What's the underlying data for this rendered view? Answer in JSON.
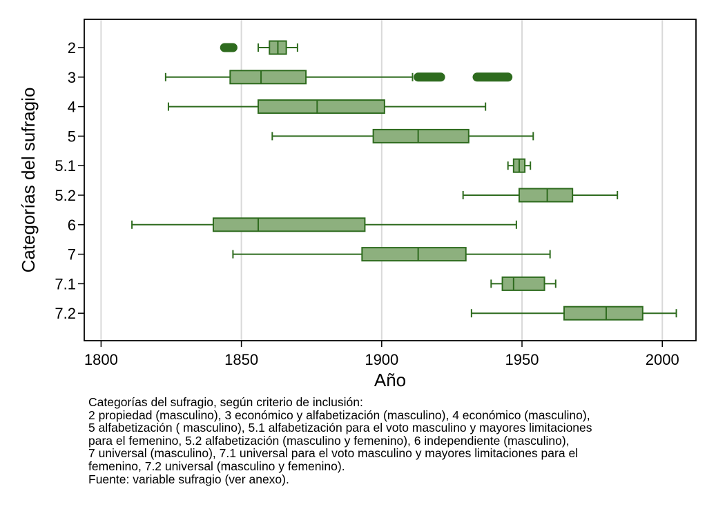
{
  "chart_data": {
    "type": "boxplot",
    "orientation": "horizontal",
    "xlabel": "Año",
    "ylabel": "Categorías del sufragio",
    "xlim": [
      1794,
      2012
    ],
    "xticks": [
      1800,
      1850,
      1900,
      1950,
      2000
    ],
    "grid": "vertical",
    "legend": "none",
    "colors": {
      "box_fill": "#8db07e",
      "stroke": "#2e6b1e",
      "outlier": "#2e6b1e",
      "grid": "#d9d9d9"
    },
    "categories": [
      "2",
      "3",
      "4",
      "5",
      "5.1",
      "5.2",
      "6",
      "7",
      "7.1",
      "7.2"
    ],
    "boxes": [
      {
        "category": "2",
        "whisker_low": 1856,
        "q1": 1860,
        "median": 1863,
        "q3": 1866,
        "whisker_high": 1870,
        "outliers": [
          1844,
          1847
        ]
      },
      {
        "category": "3",
        "whisker_low": 1823,
        "q1": 1846,
        "median": 1857,
        "q3": 1873,
        "whisker_high": 1911,
        "outliers": [
          1913,
          1921,
          1934,
          1945
        ]
      },
      {
        "category": "4",
        "whisker_low": 1824,
        "q1": 1856,
        "median": 1877,
        "q3": 1901,
        "whisker_high": 1937,
        "outliers": []
      },
      {
        "category": "5",
        "whisker_low": 1861,
        "q1": 1897,
        "median": 1913,
        "q3": 1931,
        "whisker_high": 1954,
        "outliers": []
      },
      {
        "category": "5.1",
        "whisker_low": 1945,
        "q1": 1947,
        "median": 1949,
        "q3": 1951,
        "whisker_high": 1953,
        "outliers": []
      },
      {
        "category": "5.2",
        "whisker_low": 1929,
        "q1": 1949,
        "median": 1959,
        "q3": 1968,
        "whisker_high": 1984,
        "outliers": []
      },
      {
        "category": "6",
        "whisker_low": 1811,
        "q1": 1840,
        "median": 1856,
        "q3": 1894,
        "whisker_high": 1948,
        "outliers": []
      },
      {
        "category": "7",
        "whisker_low": 1847,
        "q1": 1893,
        "median": 1913,
        "q3": 1930,
        "whisker_high": 1960,
        "outliers": []
      },
      {
        "category": "7.1",
        "whisker_low": 1939,
        "q1": 1943,
        "median": 1947,
        "q3": 1958,
        "whisker_high": 1962,
        "outliers": []
      },
      {
        "category": "7.2",
        "whisker_low": 1932,
        "q1": 1965,
        "median": 1980,
        "q3": 1993,
        "whisker_high": 2005,
        "outliers": []
      }
    ]
  },
  "note": {
    "lines": [
      "Categorías del sufragio, según criterio de inclusión:",
      "2 propiedad (masculino), 3 económico y alfabetización (masculino), 4 económico (masculino),",
      "5 alfabetización ( masculino), 5.1 alfabetización para el voto masculino y mayores limitaciones",
      "para el femenino, 5.2 alfabetización (masculino y femenino), 6 independiente (masculino),",
      "7 universal (masculino), 7.1 universal para el voto masculino y mayores limitaciones para el",
      "femenino, 7.2 universal (masculino y femenino).",
      "Fuente: variable sufragio (ver anexo)."
    ]
  }
}
